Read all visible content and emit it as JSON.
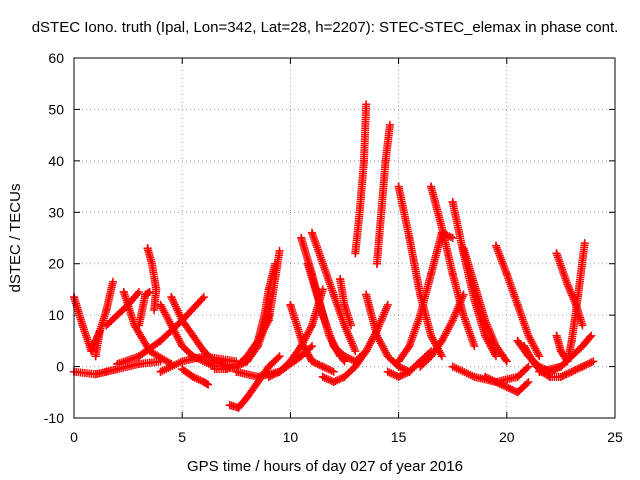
{
  "chart_data": {
    "type": "scatter",
    "title": "dSTEC Iono. truth (Ipal, Lon=342, Lat=28, h=2207): STEC-STEC_elemax in phase cont.",
    "xlabel": "GPS time / hours of day 027 of year 2016",
    "ylabel": "dSTEC  / TECUs",
    "xlim": [
      0,
      25
    ],
    "ylim": [
      -10,
      60
    ],
    "x_ticks": [
      0,
      5,
      10,
      15,
      20,
      25
    ],
    "y_ticks": [
      -10,
      0,
      10,
      20,
      30,
      40,
      50,
      60
    ],
    "x_tick_labels": [
      "0",
      "5",
      "10",
      "15",
      "20",
      "25"
    ],
    "y_tick_labels": [
      "-10",
      "0",
      "10",
      "20",
      "30",
      "40",
      "50",
      "60"
    ],
    "grid": true,
    "marker": "+",
    "marker_color": "#ff0000",
    "series": [
      {
        "x": [
          0.0,
          0.4,
          0.8,
          1.0,
          1.2
        ],
        "y": [
          13.5,
          8,
          3,
          5,
          7
        ]
      },
      {
        "x": [
          0.0,
          1.0,
          1.5,
          2.0,
          3.0,
          4.0
        ],
        "y": [
          -1.0,
          -1.5,
          -1.0,
          -0.5,
          0.5,
          1.0
        ]
      },
      {
        "x": [
          1.0,
          1.2,
          1.5,
          1.8
        ],
        "y": [
          2,
          7,
          11,
          16.5
        ]
      },
      {
        "x": [
          1.5,
          2.0,
          2.5,
          3.0
        ],
        "y": [
          8,
          10,
          12,
          14.5
        ]
      },
      {
        "x": [
          2.3,
          2.8,
          3.5,
          4.5
        ],
        "y": [
          14.5,
          8,
          3,
          0.5
        ]
      },
      {
        "x": [
          3.0,
          3.3,
          3.5
        ],
        "y": [
          8,
          14,
          14.5
        ]
      },
      {
        "x": [
          3.4,
          3.6,
          3.8,
          3.7
        ],
        "y": [
          23,
          20,
          15,
          11
        ]
      },
      {
        "x": [
          2.0,
          3.0,
          4.0,
          5.0,
          6.0
        ],
        "y": [
          0.5,
          2,
          5,
          9,
          13.5
        ]
      },
      {
        "x": [
          4.0,
          4.5,
          5.0,
          5.5,
          6.5
        ],
        "y": [
          12,
          8,
          4,
          2,
          0
        ]
      },
      {
        "x": [
          4.0,
          5.0,
          6.0,
          7.5
        ],
        "y": [
          -1,
          1,
          2,
          1
        ]
      },
      {
        "x": [
          4.5,
          5.0,
          6.0,
          6.5,
          7.2
        ],
        "y": [
          13.5,
          9,
          3,
          1,
          0
        ]
      },
      {
        "x": [
          5.0,
          5.5,
          6.0,
          6.2
        ],
        "y": [
          -0.5,
          -2,
          -3,
          -3.5
        ]
      },
      {
        "x": [
          6.5,
          7.0,
          7.5,
          8.0,
          8.5,
          9.0
        ],
        "y": [
          -0.5,
          -0.5,
          0,
          1,
          4,
          10
        ]
      },
      {
        "x": [
          7.2,
          7.6,
          8.0,
          8.5,
          9.0,
          9.5
        ],
        "y": [
          -7.5,
          -8,
          -6,
          -3,
          0,
          2
        ]
      },
      {
        "x": [
          7.5,
          8.0,
          8.5,
          9.0,
          9.5
        ],
        "y": [
          0,
          2,
          5,
          9,
          22.5
        ]
      },
      {
        "x": [
          8.0,
          8.5,
          8.8,
          9.0,
          9.3
        ],
        "y": [
          1,
          5,
          10,
          15,
          20
        ]
      },
      {
        "x": [
          7.5,
          8.5,
          9.5,
          10.5,
          11.0
        ],
        "y": [
          -1,
          -2,
          -1,
          2,
          4
        ]
      },
      {
        "x": [
          9.0,
          9.5,
          10.0,
          10.5,
          11.0,
          11.5
        ],
        "y": [
          -2,
          -1,
          1,
          4,
          8,
          15
        ]
      },
      {
        "x": [
          10.0,
          10.3,
          10.6,
          11.0,
          11.5,
          12.0
        ],
        "y": [
          12,
          8,
          4,
          1,
          0,
          -1
        ]
      },
      {
        "x": [
          10.5,
          11.0,
          11.5,
          12.0,
          12.5
        ],
        "y": [
          25,
          18,
          10,
          4,
          1
        ]
      },
      {
        "x": [
          11.0,
          11.5,
          12.0,
          12.5,
          13.0
        ],
        "y": [
          26,
          20,
          14,
          8,
          3
        ]
      },
      {
        "x": [
          10.8,
          11.3,
          11.8,
          12.3
        ],
        "y": [
          20,
          13,
          6,
          2
        ]
      },
      {
        "x": [
          11.5,
          12.0,
          12.5,
          13.0,
          13.5
        ],
        "y": [
          -2,
          -3,
          -2,
          0,
          3
        ]
      },
      {
        "x": [
          12.0,
          12.5,
          13.0,
          13.5,
          14.0,
          14.5
        ],
        "y": [
          4,
          2,
          1,
          3,
          7,
          12
        ]
      },
      {
        "x": [
          12.3,
          12.5,
          12.8
        ],
        "y": [
          17,
          12,
          8
        ]
      },
      {
        "x": [
          13.0,
          13.2,
          13.4,
          13.5
        ],
        "y": [
          22,
          30,
          40,
          51
        ]
      },
      {
        "x": [
          13.5,
          14.0,
          14.5,
          15.0,
          15.5
        ],
        "y": [
          14,
          6,
          2,
          0,
          -1
        ]
      },
      {
        "x": [
          14.0,
          14.2,
          14.4,
          14.6
        ],
        "y": [
          20,
          30,
          40,
          47
        ]
      },
      {
        "x": [
          14.5,
          15.0,
          15.5,
          16.0,
          16.5
        ],
        "y": [
          -1,
          -2,
          -1,
          1,
          3
        ]
      },
      {
        "x": [
          15.0,
          15.5,
          16.0,
          16.5,
          17.0
        ],
        "y": [
          35,
          25,
          14,
          6,
          2
        ]
      },
      {
        "x": [
          15.0,
          15.5,
          16.0,
          16.5,
          17.0,
          17.5
        ],
        "y": [
          1,
          4,
          10,
          18,
          26,
          25
        ]
      },
      {
        "x": [
          16.5,
          17.0,
          17.5,
          18.0,
          18.5
        ],
        "y": [
          35,
          27,
          18,
          10,
          4
        ]
      },
      {
        "x": [
          16.0,
          16.5,
          17.0,
          17.5,
          18.0
        ],
        "y": [
          0,
          2,
          5,
          9,
          14
        ]
      },
      {
        "x": [
          17.5,
          18.0,
          18.5,
          19.0,
          19.5
        ],
        "y": [
          32,
          22,
          13,
          6,
          2
        ]
      },
      {
        "x": [
          18.0,
          18.5,
          19.0,
          19.5,
          20.0
        ],
        "y": [
          23,
          16,
          9,
          4,
          1
        ]
      },
      {
        "x": [
          17.5,
          18.5,
          19.5,
          20.5,
          21.0
        ],
        "y": [
          0,
          -2,
          -3,
          -2,
          0
        ]
      },
      {
        "x": [
          19.0,
          19.5,
          20.0,
          20.5,
          21.0
        ],
        "y": [
          -2,
          -3,
          -4,
          -5,
          -3
        ]
      },
      {
        "x": [
          19.5,
          20.0,
          20.5,
          21.0,
          21.5
        ],
        "y": [
          23.5,
          18,
          12,
          6,
          2
        ]
      },
      {
        "x": [
          20.5,
          21.0,
          21.5,
          22.0,
          22.5
        ],
        "y": [
          5,
          2,
          0,
          -1,
          0
        ]
      },
      {
        "x": [
          20.8,
          21.2,
          21.6,
          22.0
        ],
        "y": [
          4,
          1,
          -1,
          -2
        ]
      },
      {
        "x": [
          22.3,
          22.8,
          23.2,
          23.5
        ],
        "y": [
          22,
          16,
          12,
          8
        ]
      },
      {
        "x": [
          22.3,
          22.5,
          22.8,
          23.0,
          23.3,
          23.6
        ],
        "y": [
          6,
          3,
          1,
          5,
          14,
          24
        ]
      },
      {
        "x": [
          21.5,
          22.5,
          23.0,
          23.5,
          23.9
        ],
        "y": [
          -1,
          0,
          2,
          4,
          6
        ]
      },
      {
        "x": [
          22.0,
          22.5,
          23.0,
          23.5,
          24.0
        ],
        "y": [
          -2,
          -2,
          -1,
          0,
          1
        ]
      }
    ]
  }
}
